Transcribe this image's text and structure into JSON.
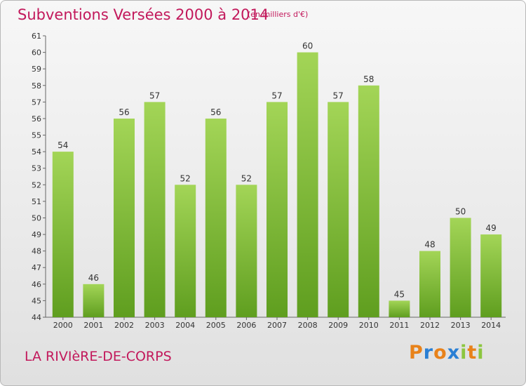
{
  "header": {
    "title": "Subventions Versées 2000 à 2014",
    "unit": "(en milliers d'€)"
  },
  "footer": {
    "commune": "LA RIVIèRE-DE-CORPS",
    "logo": "Proxiti"
  },
  "colors": {
    "accent": "#c2185b",
    "bar_light": "#a3d557",
    "bar_dark": "#5f9e1f",
    "logo_letters": [
      "#e8821a",
      "#2a7fd4",
      "#e8821a",
      "#2a7fd4",
      "#8cc63f",
      "#e8821a",
      "#8cc63f"
    ]
  },
  "chart_data": {
    "type": "bar",
    "title": "Subventions Versées 2000 à 2014",
    "subtitle": "(en milliers d'€)",
    "categories": [
      "2000",
      "2001",
      "2002",
      "2003",
      "2004",
      "2005",
      "2006",
      "2007",
      "2008",
      "2009",
      "2010",
      "2011",
      "2012",
      "2013",
      "2014"
    ],
    "values": [
      54,
      46,
      56,
      57,
      52,
      56,
      52,
      57,
      60,
      57,
      58,
      45,
      48,
      50,
      49
    ],
    "ylim": [
      44,
      61
    ],
    "yticks": [
      44,
      45,
      46,
      47,
      48,
      49,
      50,
      51,
      52,
      53,
      54,
      55,
      56,
      57,
      58,
      59,
      60,
      61
    ],
    "grid": false,
    "legend": "none"
  }
}
